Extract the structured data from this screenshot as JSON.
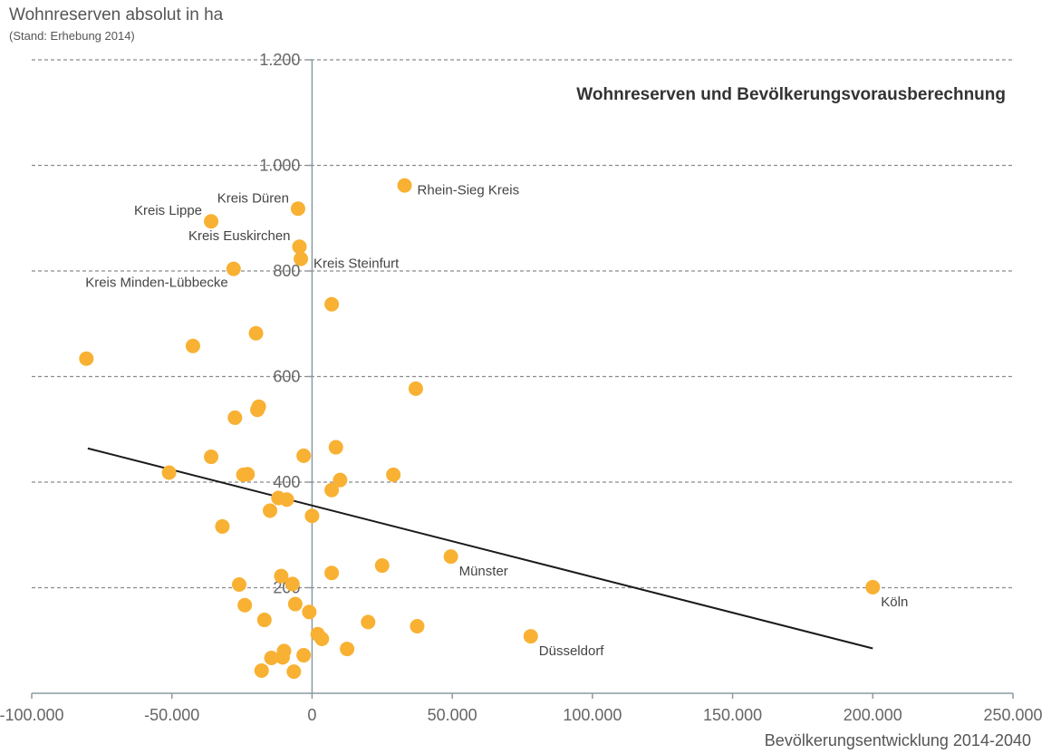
{
  "chart_data": {
    "type": "scatter",
    "title": "Wohnreserven und Bevölkerungsvorausberechnung",
    "ylabel": "Wohnreserven absolut in ha",
    "ylabel_note": "(Stand: Erhebung 2014)",
    "xlabel": "Bevölkerungsentwicklung 2014-2040",
    "xlim": [
      -100000,
      250000
    ],
    "ylim": [
      0,
      1200
    ],
    "xticks": [
      -100000,
      -50000,
      0,
      50000,
      100000,
      150000,
      200000,
      250000
    ],
    "xtick_labels": [
      "-100.000",
      "-50.000",
      "0",
      "50.000",
      "100.000",
      "150.000",
      "200.000",
      "250.000"
    ],
    "yticks": [
      200,
      400,
      600,
      800,
      1000,
      1200
    ],
    "ytick_labels": [
      "200",
      "400",
      "600",
      "800",
      "1.000",
      "1.200"
    ],
    "grid": "horizontal dashed",
    "point_color": "#F8B133",
    "trend_color": "#1a1a1a",
    "trendline": {
      "x": [
        -80000,
        200000
      ],
      "y": [
        464,
        85
      ]
    },
    "labeled_points": [
      {
        "label": "Rhein-Sieg Kreis",
        "x": 33000,
        "y": 962,
        "label_side": "right"
      },
      {
        "label": "Kreis Düren",
        "x": -5000,
        "y": 918,
        "label_side": "left"
      },
      {
        "label": "Kreis Lippe",
        "x": -36000,
        "y": 894,
        "label_side": "left"
      },
      {
        "label": "Kreis Euskirchen",
        "x": -4500,
        "y": 846,
        "label_side": "left"
      },
      {
        "label": "Kreis Steinfurt",
        "x": -4000,
        "y": 823,
        "label_side": "right"
      },
      {
        "label": "Kreis Minden-Lübbecke",
        "x": -28000,
        "y": 804,
        "label_side": "below-left"
      },
      {
        "label": "Münster",
        "x": 49500,
        "y": 259,
        "label_side": "below-right"
      },
      {
        "label": "Köln",
        "x": 200000,
        "y": 201,
        "label_side": "below-right"
      },
      {
        "label": "Düsseldorf",
        "x": 78000,
        "y": 108,
        "label_side": "below-right"
      }
    ],
    "points": [
      {
        "x": -80500,
        "y": 634
      },
      {
        "x": -42500,
        "y": 658
      },
      {
        "x": -20000,
        "y": 682
      },
      {
        "x": 7000,
        "y": 737
      },
      {
        "x": 37000,
        "y": 577
      },
      {
        "x": -19000,
        "y": 543
      },
      {
        "x": -19500,
        "y": 537
      },
      {
        "x": -27500,
        "y": 522
      },
      {
        "x": 8500,
        "y": 466
      },
      {
        "x": -36000,
        "y": 448
      },
      {
        "x": -3000,
        "y": 450
      },
      {
        "x": -51000,
        "y": 418
      },
      {
        "x": -24500,
        "y": 414
      },
      {
        "x": -23000,
        "y": 415
      },
      {
        "x": 29000,
        "y": 414
      },
      {
        "x": 10000,
        "y": 404
      },
      {
        "x": 7000,
        "y": 385
      },
      {
        "x": -12000,
        "y": 370
      },
      {
        "x": -9000,
        "y": 367
      },
      {
        "x": -15000,
        "y": 346
      },
      {
        "x": 0,
        "y": 336
      },
      {
        "x": -32000,
        "y": 316
      },
      {
        "x": 25000,
        "y": 242
      },
      {
        "x": 7000,
        "y": 228
      },
      {
        "x": -11000,
        "y": 222
      },
      {
        "x": -26000,
        "y": 206
      },
      {
        "x": -7000,
        "y": 207
      },
      {
        "x": -24000,
        "y": 167
      },
      {
        "x": -6000,
        "y": 169
      },
      {
        "x": -1000,
        "y": 154
      },
      {
        "x": -17000,
        "y": 139
      },
      {
        "x": 20000,
        "y": 135
      },
      {
        "x": 37500,
        "y": 127
      },
      {
        "x": 2000,
        "y": 112
      },
      {
        "x": 3500,
        "y": 103
      },
      {
        "x": 12500,
        "y": 84
      },
      {
        "x": -10000,
        "y": 80
      },
      {
        "x": -3000,
        "y": 72
      },
      {
        "x": -10500,
        "y": 68
      },
      {
        "x": -14500,
        "y": 67
      },
      {
        "x": -18000,
        "y": 43
      },
      {
        "x": -6500,
        "y": 41
      }
    ]
  }
}
